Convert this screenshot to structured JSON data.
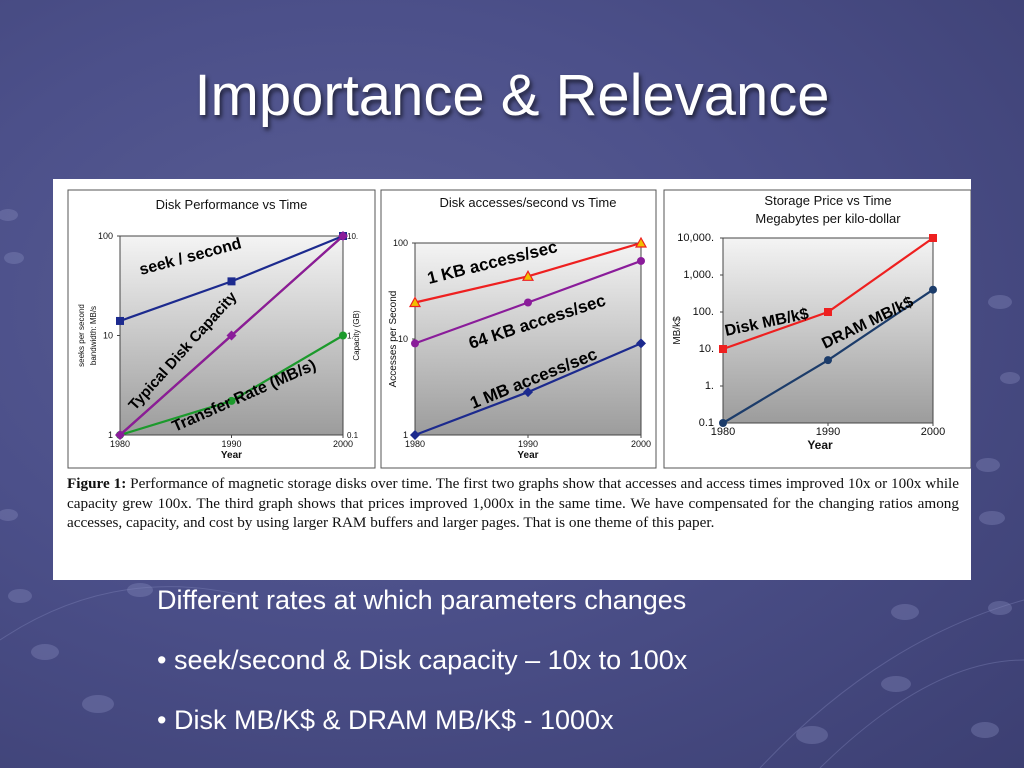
{
  "slide": {
    "title": "Importance & Relevance",
    "bullets": [
      "Different rates at which parameters changes",
      "• seek/second & Disk capacity – 10x to 100x",
      "• Disk MB/K$ & DRAM MB/K$ - 1000x"
    ]
  },
  "caption": {
    "label": "Figure 1:",
    "text": " Performance of magnetic storage disks over time. The first two graphs show that accesses and access times improved 10x or 100x while capacity grew 100x. The third graph shows that prices improved 1,000x in the same time.   We have compensated for the changing ratios among accesses, capacity, and cost by using larger RAM buffers and larger pages.  That is one theme of this paper."
  },
  "colors": {
    "navy": "#1c2a8e",
    "dark_red": "#7a1818",
    "green": "#1c9a2c",
    "purple": "#8a1c9a",
    "red": "#ee2020",
    "orange_marker": "#f0c000",
    "steel_blue": "#1c3c6a"
  },
  "chart_data": [
    {
      "type": "line",
      "title": "Disk Performance vs Time",
      "xlabel": "Year",
      "ylabel": "seeks per second bandwidth: MB/s",
      "ylabel_right": "Capacity (GB)",
      "y_scale": "log",
      "x_ticks": [
        "1980",
        "1990",
        "2000"
      ],
      "y_ticks": [
        "100",
        "10",
        "1"
      ],
      "y_ticks_right": [
        "10.",
        "1.",
        "0.1"
      ],
      "xlim": [
        1980,
        2000
      ],
      "ylim": [
        1,
        100
      ],
      "grid": false,
      "series": [
        {
          "name": "seek / second",
          "x": [
            1980,
            1990,
            2000
          ],
          "y": [
            14,
            35,
            100
          ],
          "color": "#1c2a8e",
          "marker": "square"
        },
        {
          "name": "Typical Disk Capacity",
          "x": [
            1980,
            1990,
            2000
          ],
          "y": [
            1,
            10,
            100
          ],
          "color": "#7a1818",
          "marker": "none"
        },
        {
          "name": "Transfer Rate (MB/s)",
          "x": [
            1980,
            1990,
            2000
          ],
          "y": [
            1,
            2.2,
            10
          ],
          "color": "#1c9a2c",
          "marker": "circle"
        },
        {
          "name": "",
          "x": [
            1980,
            1990,
            2000
          ],
          "y": [
            1,
            10,
            100
          ],
          "color": "#8a1c9a",
          "marker": "diamond"
        }
      ]
    },
    {
      "type": "line",
      "title": "Disk accesses/second vs Time",
      "xlabel": "Year",
      "ylabel": "Accesses per Second",
      "y_scale": "log",
      "x_ticks": [
        "1980",
        "1990",
        "2000"
      ],
      "y_ticks": [
        "100",
        "10",
        "1"
      ],
      "xlim": [
        1980,
        2000
      ],
      "ylim": [
        1,
        100
      ],
      "grid": false,
      "series": [
        {
          "name": "1 KB access/sec",
          "x": [
            1980,
            1990,
            2000
          ],
          "y": [
            24,
            45,
            100
          ],
          "color": "#ee2020",
          "marker": "triangle"
        },
        {
          "name": "64 KB access/sec",
          "x": [
            1980,
            1990,
            2000
          ],
          "y": [
            9,
            24,
            65
          ],
          "color": "#8a1c9a",
          "marker": "circle"
        },
        {
          "name": "1 MB access/sec",
          "x": [
            1980,
            1990,
            2000
          ],
          "y": [
            1,
            2.8,
            9
          ],
          "color": "#1c2a8e",
          "marker": "diamond"
        }
      ]
    },
    {
      "type": "line",
      "title": "Storage Price vs Time",
      "subtitle": "Megabytes per kilo-dollar",
      "xlabel": "Year",
      "ylabel": "MB/k$",
      "y_scale": "log",
      "x_ticks": [
        "1980",
        "1990",
        "2000"
      ],
      "y_ticks": [
        "10,000.",
        "1,000.",
        "100.",
        "10.",
        "1.",
        "0.1"
      ],
      "xlim": [
        1980,
        2000
      ],
      "ylim": [
        0.1,
        10000
      ],
      "grid": false,
      "series": [
        {
          "name": "Disk  MB/k$",
          "x": [
            1980,
            1990,
            2000
          ],
          "y": [
            10,
            100,
            10000
          ],
          "color": "#ee2020",
          "marker": "square"
        },
        {
          "name": "DRAM  MB/k$",
          "x": [
            1980,
            1990,
            2000
          ],
          "y": [
            0.1,
            5,
            400
          ],
          "color": "#1c3c6a",
          "marker": "circle"
        }
      ]
    }
  ]
}
